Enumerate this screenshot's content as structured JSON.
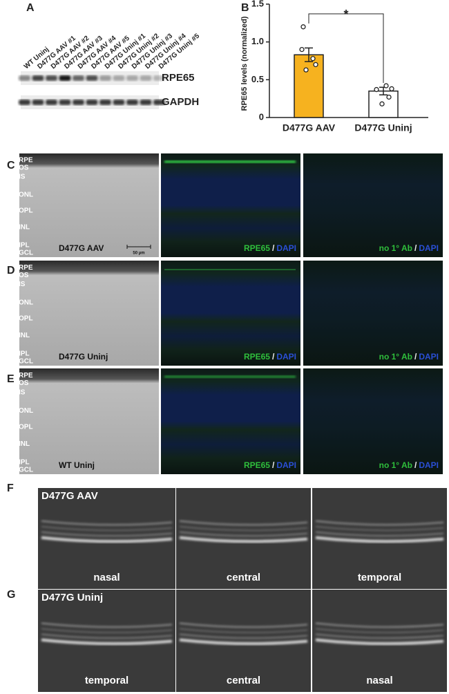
{
  "panel_labels": [
    "A",
    "B",
    "C",
    "D",
    "E",
    "F",
    "G"
  ],
  "blot": {
    "lanes": [
      "WT Uninj",
      "D477G AAV #1",
      "D477G AAV #2",
      "D477G AAV #3",
      "D477G AAV #4",
      "D477G AAV #5",
      "D477G Uninj #1",
      "D477G Uninj #2",
      "D477G Uninj #3",
      "D477G Uninj #4",
      "D477G Uninj #5"
    ],
    "bands": [
      "RPE65",
      "GAPDH"
    ]
  },
  "chart_data": {
    "type": "bar",
    "ylabel": "RPE65 levels (normalized)",
    "categories": [
      "D477G AAV",
      "D477G Uninj"
    ],
    "values": [
      0.83,
      0.35
    ],
    "errors": [
      0.09,
      0.05
    ],
    "colors": [
      "#f6b21f",
      "#ffffff"
    ],
    "points": [
      [
        1.2,
        0.9,
        0.78,
        0.7,
        0.63
      ],
      [
        0.42,
        0.38,
        0.37,
        0.27,
        0.18
      ]
    ],
    "ylim": [
      0,
      1.5
    ],
    "yticks": [
      0,
      0.5,
      {
        "value": 1,
        "label": "1.0"
      },
      {
        "value": 1.5,
        "label": "1.5"
      }
    ],
    "significance": "*"
  },
  "histology": {
    "rows": [
      {
        "group": "D477G AAV",
        "layers": [
          "RPE",
          "OS",
          "IS",
          "ONL",
          "OPL",
          "INL",
          "IPL",
          "GCL"
        ]
      },
      {
        "group": "D477G Uninj",
        "layers": [
          "RPE",
          "OS",
          "IS",
          "ONL",
          "OPL",
          "INL",
          "IPL",
          "GCL"
        ]
      },
      {
        "group": "WT Uninj",
        "layers": [
          "RPE",
          "OS",
          "IS",
          "ONL",
          "OPL",
          "INL",
          "IPL",
          "GCL"
        ]
      }
    ],
    "stains": [
      {
        "marker": "RPE65",
        "sep": "/",
        "counter": "DAPI"
      },
      {
        "marker": "no 1° Ab",
        "sep": "/",
        "counter": "DAPI"
      }
    ],
    "scale_bar": "50 µm"
  },
  "oct": {
    "rows": [
      {
        "group": "D477G AAV",
        "regions": [
          "nasal",
          "central",
          "temporal"
        ]
      },
      {
        "group": "D477G Uninj",
        "regions": [
          "temporal",
          "central",
          "nasal"
        ]
      }
    ]
  }
}
